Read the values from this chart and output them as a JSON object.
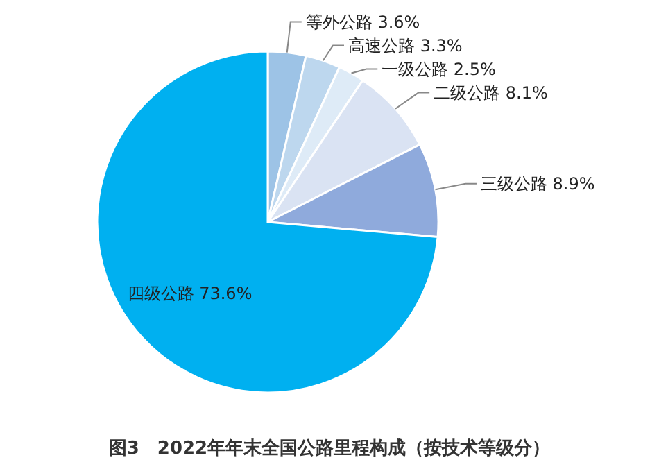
{
  "chart_data": {
    "type": "pie",
    "title": "图3　2022年年末全国公路里程构成（按技术等级分）",
    "categories": [
      "等外公路",
      "高速公路",
      "一级公路",
      "二级公路",
      "三级公路",
      "四级公路"
    ],
    "values": [
      3.6,
      3.3,
      2.5,
      8.1,
      8.9,
      73.6
    ],
    "colors": [
      "#9dc3e6",
      "#bdd7ee",
      "#deebf7",
      "#dae3f3",
      "#8faadc",
      "#00b0f0"
    ],
    "value_labels": [
      "3.6%",
      "3.3%",
      "2.5%",
      "8.1%",
      "8.9%",
      "73.6%"
    ]
  }
}
